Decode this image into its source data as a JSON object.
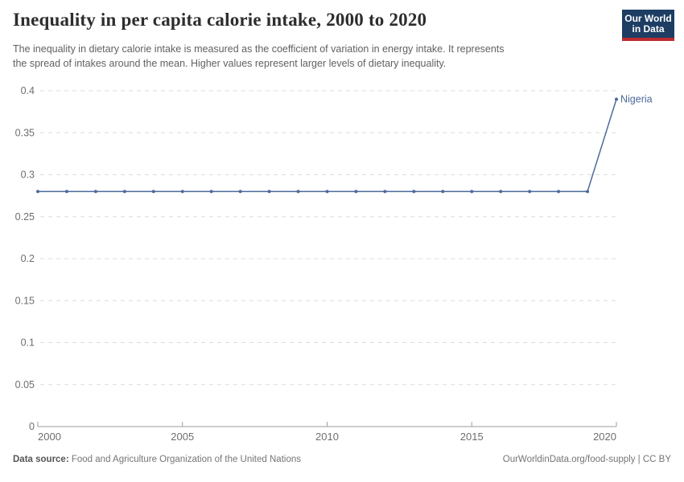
{
  "header": {
    "title": "Inequality in per capita calorie intake, 2000 to 2020",
    "subtitle_line1": "The inequality in dietary calorie intake is measured as the coefficient of variation in energy intake. It represents",
    "subtitle_line2": "the spread of intakes around the mean. Higher values represent larger levels of dietary inequality."
  },
  "logo": {
    "line1": "Our World",
    "line2": "in Data",
    "bg_color": "#1d3d63",
    "accent_color": "#bc2b30"
  },
  "chart_data": {
    "type": "line",
    "title": "Inequality in per capita calorie intake, 2000 to 2020",
    "x": [
      2000,
      2001,
      2002,
      2003,
      2004,
      2005,
      2006,
      2007,
      2008,
      2009,
      2010,
      2011,
      2012,
      2013,
      2014,
      2015,
      2016,
      2017,
      2018,
      2019,
      2020
    ],
    "series": [
      {
        "name": "Nigeria",
        "color": "#4c6a9c",
        "values": [
          0.28,
          0.28,
          0.28,
          0.28,
          0.28,
          0.28,
          0.28,
          0.28,
          0.28,
          0.28,
          0.28,
          0.28,
          0.28,
          0.28,
          0.28,
          0.28,
          0.28,
          0.28,
          0.28,
          0.28,
          0.39
        ]
      }
    ],
    "xlabel": "",
    "ylabel": "",
    "ylim": [
      0,
      0.4
    ],
    "yticks": [
      0,
      0.05,
      0.1,
      0.15,
      0.2,
      0.25,
      0.3,
      0.35,
      0.4
    ],
    "ytick_labels": [
      "0",
      "0.05",
      "0.1",
      "0.15",
      "0.2",
      "0.25",
      "0.3",
      "0.35",
      "0.4"
    ],
    "xticks": [
      2000,
      2005,
      2010,
      2015,
      2020
    ],
    "grid": "horizontal-dashed",
    "legend_position": "end-of-line-label",
    "colors": {
      "grid": "#dcdcdc",
      "axis": "#9e9e9e",
      "tick_text": "#6e6e6e"
    }
  },
  "footer": {
    "datasource_label": "Data source:",
    "datasource_text": " Food and Agriculture Organization of the United Nations",
    "right": "OurWorldinData.org/food-supply | CC BY"
  }
}
